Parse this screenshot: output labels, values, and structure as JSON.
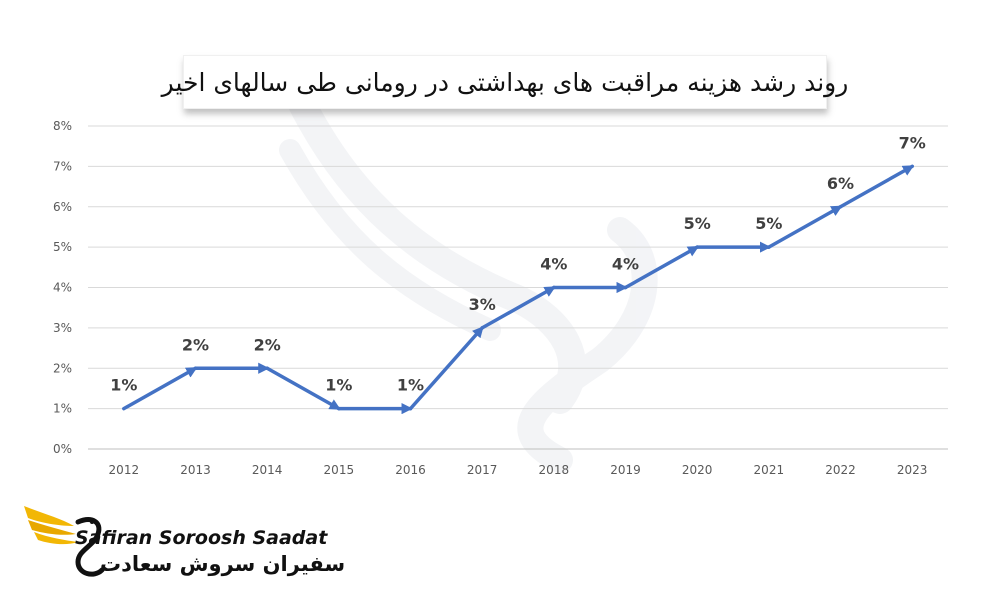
{
  "chart_data": {
    "type": "line",
    "title": "روند رشد هزینه مراقبت های بهداشتی در رومانی طی سالهای اخیر",
    "x": [
      "2012",
      "2013",
      "2014",
      "2015",
      "2016",
      "2017",
      "2018",
      "2019",
      "2020",
      "2021",
      "2022",
      "2023"
    ],
    "values": [
      1,
      2,
      2,
      1,
      1,
      3,
      4,
      4,
      5,
      5,
      6,
      7
    ],
    "data_labels": [
      "1%",
      "2%",
      "2%",
      "1%",
      "1%",
      "3%",
      "4%",
      "4%",
      "5%",
      "5%",
      "6%",
      "7%"
    ],
    "y_ticks": [
      "0%",
      "1%",
      "2%",
      "3%",
      "4%",
      "5%",
      "6%",
      "7%",
      "8%"
    ],
    "ylim": [
      0,
      8
    ],
    "grid": true,
    "line_color": "#4472c4",
    "arrow_markers": true
  },
  "brand": {
    "name_en": "Safiran Soroosh Saadat",
    "name_fa": "سفیران سروش سعادت",
    "logo_icon": "golden-wing-swan-logo",
    "accent_color": "#f2b705"
  }
}
